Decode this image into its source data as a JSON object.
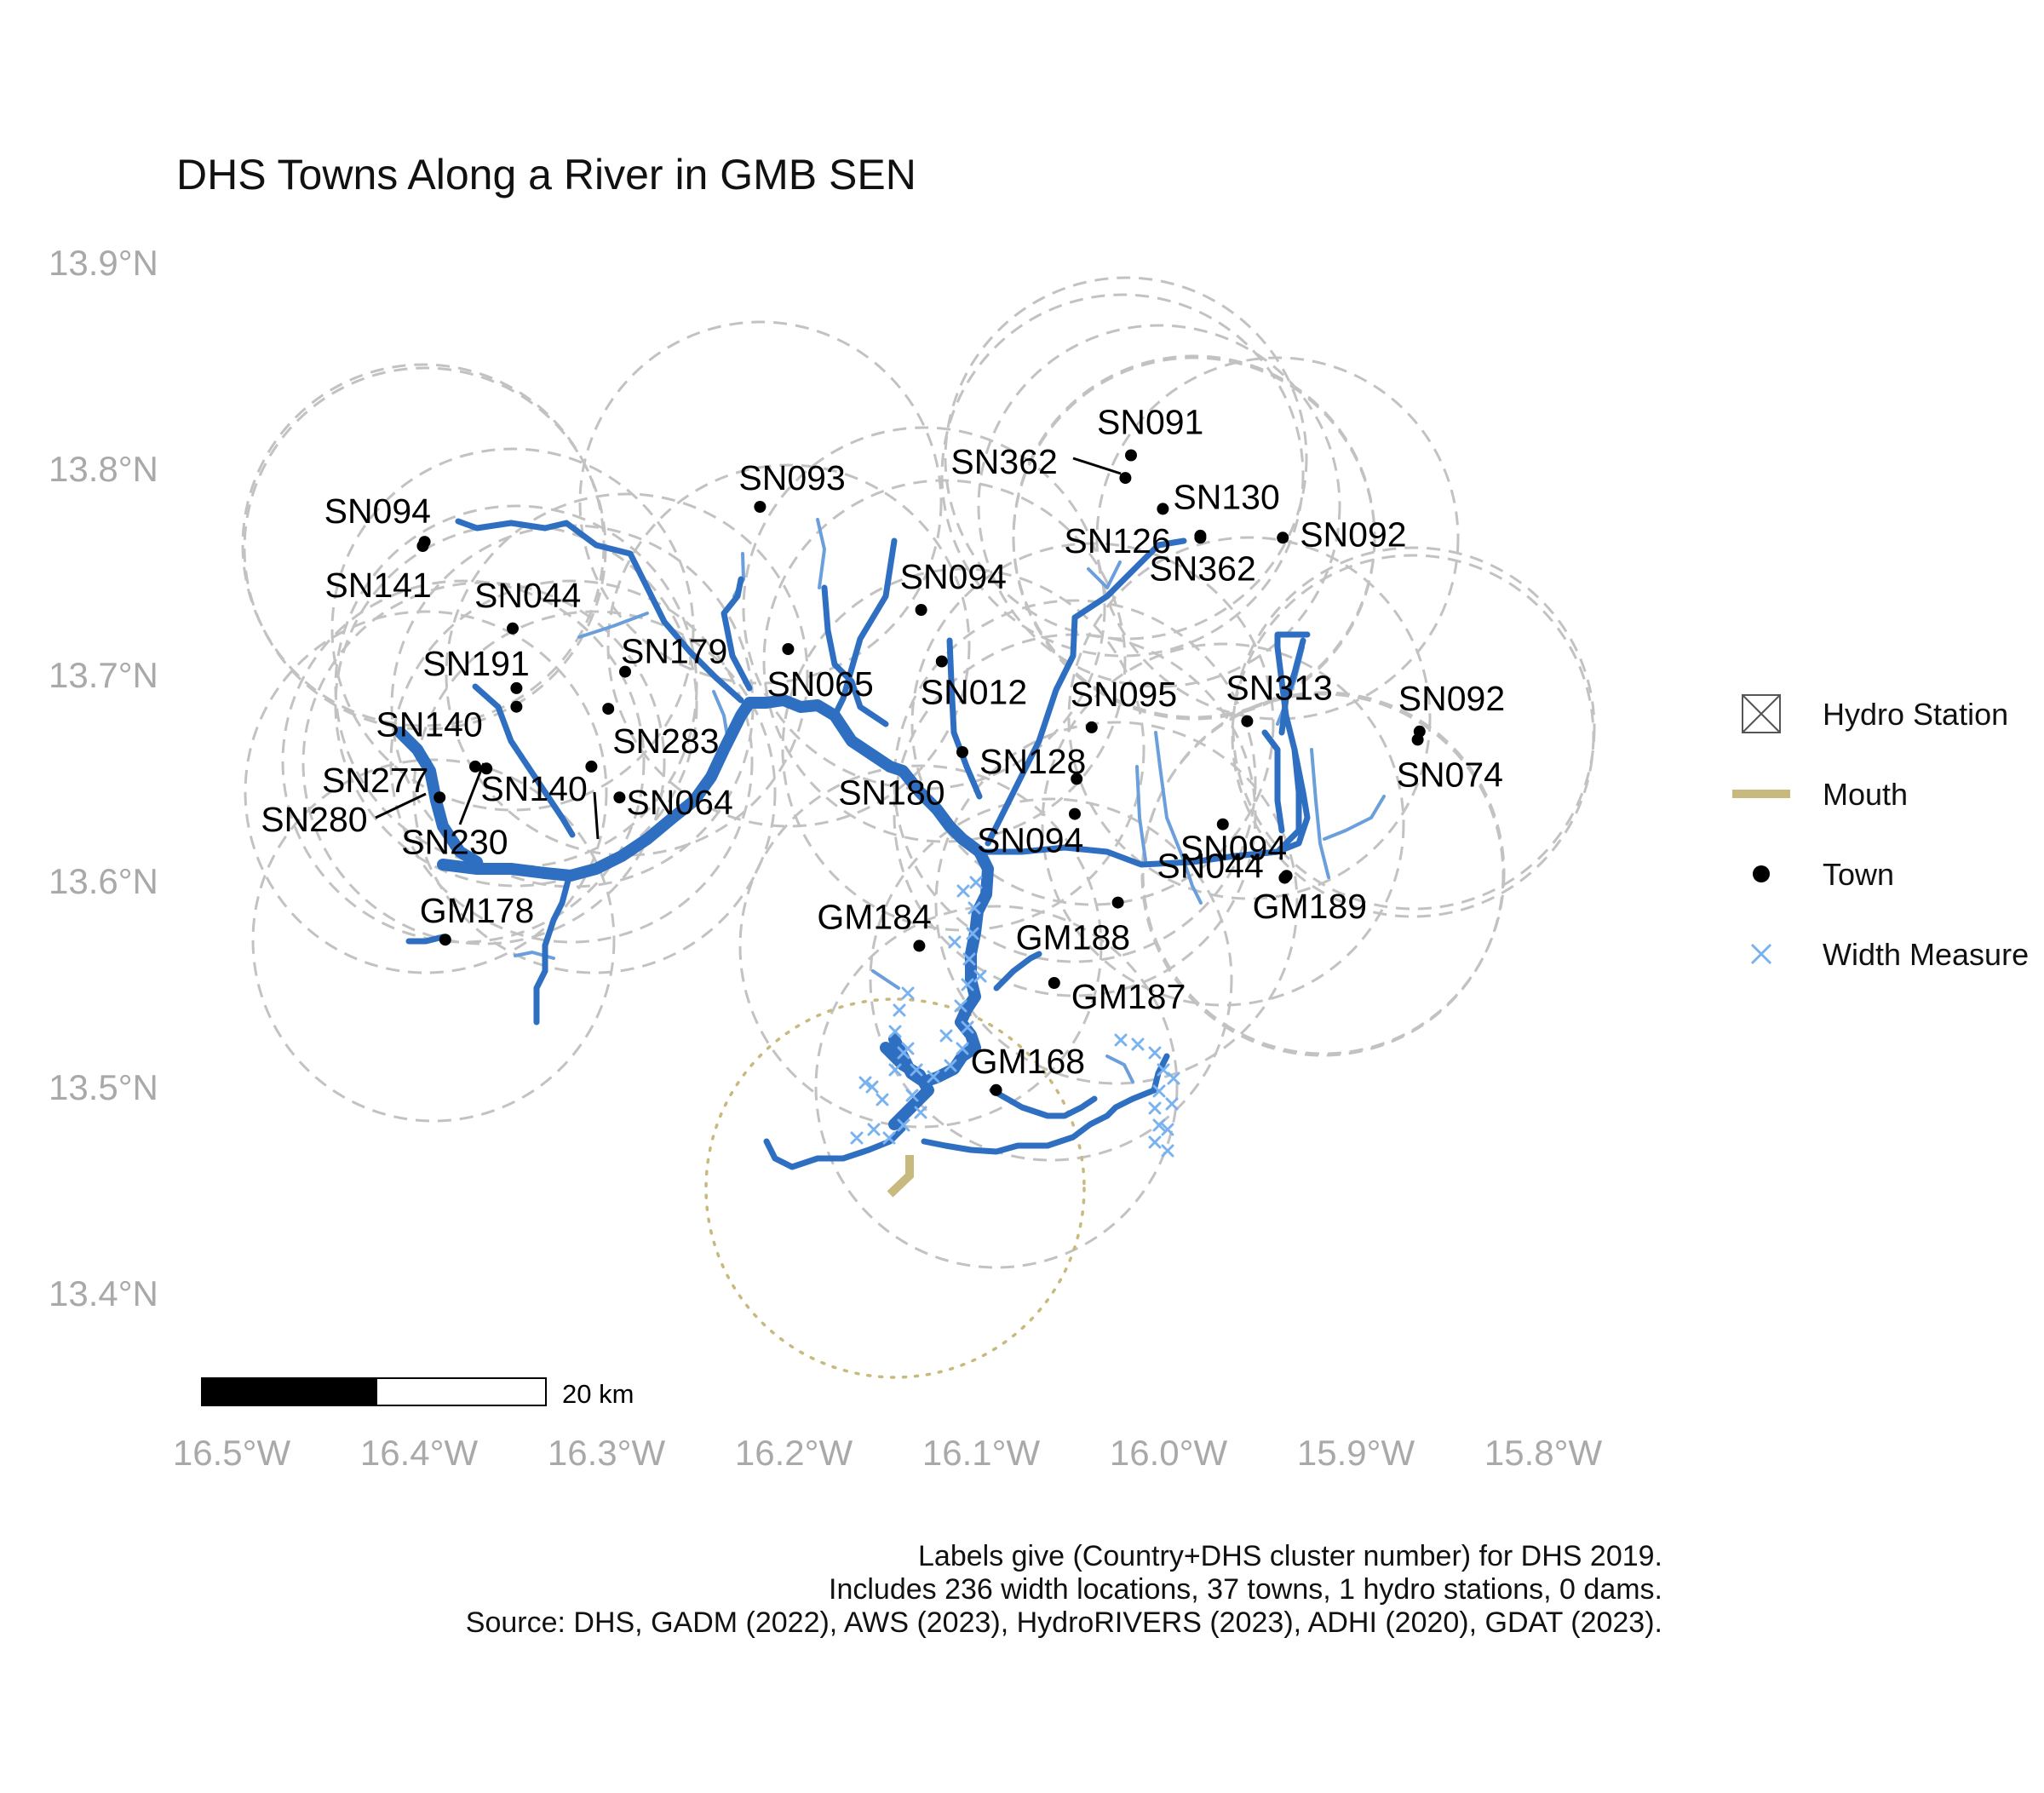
{
  "title": "DHS Towns Along a River in GMB SEN",
  "axes": {
    "lat_labels": [
      "13.9°N",
      "13.8°N",
      "13.7°N",
      "13.6°N",
      "13.5°N",
      "13.4°N"
    ],
    "lon_labels": [
      "16.5°W",
      "16.4°W",
      "16.3°W",
      "16.2°W",
      "16.1°W",
      "16.0°W",
      "15.9°W",
      "15.8°W"
    ]
  },
  "legend": {
    "items": [
      {
        "label": "Hydro Station",
        "icon": "boxed-x-icon"
      },
      {
        "label": "Mouth",
        "icon": "tan-line-icon"
      },
      {
        "label": "Town",
        "icon": "black-dot-icon"
      },
      {
        "label": "Width Measure",
        "icon": "blue-x-icon"
      }
    ]
  },
  "scale_bar": {
    "label": "20 km"
  },
  "caption": [
    "Labels give (Country+DHS cluster number) for DHS 2019.",
    "Includes 236 width locations, 37 towns, 1 hydro stations, 0 dams.",
    "Source: DHS, GADM (2022), AWS (2023), HydroRIVERS (2023), ADHI (2020), GDAT (2023)."
  ],
  "colors": {
    "river": "#2f6fc2",
    "river_light": "#6b9fdc",
    "width_measure": "#7ab2ef",
    "mouth": "#c8b97f",
    "buffer": "#c2c2c2",
    "town": "#000000",
    "axis_text": "#a9a9a9"
  },
  "towns": [
    {
      "label": "SN091",
      "lon": -16.02,
      "lat": 13.806
    },
    {
      "label": "SN362",
      "lon": -16.023,
      "lat": 13.795
    },
    {
      "label": "SN130",
      "lon": -16.003,
      "lat": 13.78
    },
    {
      "label": "SN126",
      "lon": -15.983,
      "lat": 13.767
    },
    {
      "label": "SN092",
      "lon": -15.939,
      "lat": 13.766
    },
    {
      "label": "SN362",
      "lon": -15.983,
      "lat": 13.766
    },
    {
      "label": "SN093",
      "lon": -16.218,
      "lat": 13.781
    },
    {
      "label": "SN094",
      "lon": -16.397,
      "lat": 13.764
    },
    {
      "label": "SN141",
      "lon": -16.398,
      "lat": 13.762
    },
    {
      "label": "SN044",
      "lon": -16.35,
      "lat": 13.722
    },
    {
      "label": "SN094",
      "lon": -16.132,
      "lat": 13.731
    },
    {
      "label": "SN179",
      "lon": -16.29,
      "lat": 13.701
    },
    {
      "label": "SN065",
      "lon": -16.203,
      "lat": 13.712
    },
    {
      "label": "SN191",
      "lon": -16.348,
      "lat": 13.693
    },
    {
      "label": "SN140",
      "lon": -16.348,
      "lat": 13.684
    },
    {
      "label": "SN012",
      "lon": -16.121,
      "lat": 13.706
    },
    {
      "label": "SN283",
      "lon": -16.299,
      "lat": 13.683
    },
    {
      "label": "SN095",
      "lon": -16.041,
      "lat": 13.674
    },
    {
      "label": "SN313",
      "lon": -15.958,
      "lat": 13.677
    },
    {
      "label": "SN092",
      "lon": -15.866,
      "lat": 13.672
    },
    {
      "label": "SN277",
      "lon": -16.37,
      "lat": 13.655
    },
    {
      "label": "SN128",
      "lon": -16.11,
      "lat": 13.662
    },
    {
      "label": "SN074",
      "lon": -15.867,
      "lat": 13.668
    },
    {
      "label": "SN140",
      "lon": -16.308,
      "lat": 13.655
    },
    {
      "label": "SN180",
      "lon": -16.049,
      "lat": 13.649
    },
    {
      "label": "SN280",
      "lon": -16.389,
      "lat": 13.64
    },
    {
      "label": "SN230",
      "lon": -16.364,
      "lat": 13.654
    },
    {
      "label": "SN064",
      "lon": -16.293,
      "lat": 13.64
    },
    {
      "label": "SN094",
      "lon": -16.05,
      "lat": 13.632
    },
    {
      "label": "SN094",
      "lon": -15.971,
      "lat": 13.627
    },
    {
      "label": "SN044",
      "lon": -15.938,
      "lat": 13.601
    },
    {
      "label": "GM178",
      "lon": -16.386,
      "lat": 13.571
    },
    {
      "label": "GM184",
      "lon": -16.133,
      "lat": 13.568
    },
    {
      "label": "GM188",
      "lon": -16.027,
      "lat": 13.589
    },
    {
      "label": "GM189",
      "lon": -15.937,
      "lat": 13.602
    },
    {
      "label": "GM187",
      "lon": -16.061,
      "lat": 13.55
    },
    {
      "label": "GM168",
      "lon": -16.092,
      "lat": 13.498
    }
  ]
}
